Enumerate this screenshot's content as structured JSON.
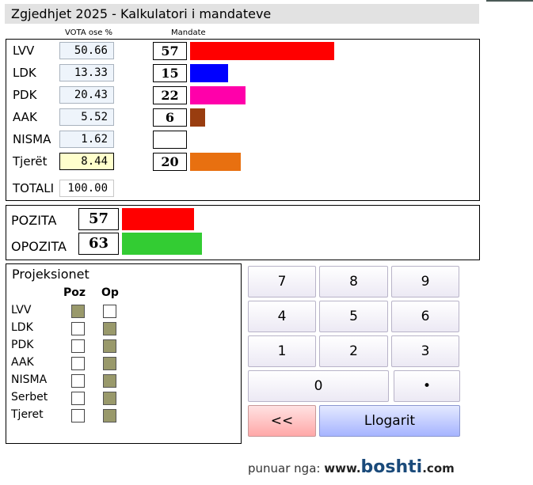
{
  "title": "Zgjedhjet 2025 - Kalkulatori i mandateve",
  "headers": {
    "votes": "VOTA ose %",
    "seats": "Mandate"
  },
  "parties": [
    {
      "label": "LVV",
      "vote": "50.66",
      "seats": "57",
      "color": "#ff0000"
    },
    {
      "label": "LDK",
      "vote": "13.33",
      "seats": "15",
      "color": "#0000ff"
    },
    {
      "label": "PDK",
      "vote": "20.43",
      "seats": "22",
      "color": "#ff00aa"
    },
    {
      "label": "AAK",
      "vote": "5.52",
      "seats": "6",
      "color": "#993d0f"
    },
    {
      "label": "NISMA",
      "vote": "1.62",
      "seats": "",
      "color": "#ffffff"
    },
    {
      "label": "Tjerët",
      "vote": "8.44",
      "seats": "20",
      "color": "#e87010"
    }
  ],
  "total": {
    "label": "TOTALI",
    "value": "100.00"
  },
  "coalition": {
    "pozita": {
      "label": "POZITA",
      "seats": "57",
      "color": "#ff0000"
    },
    "opozita": {
      "label": "OPOZITA",
      "seats": "63",
      "color": "#33cc33"
    }
  },
  "projections": {
    "title": "Projeksionet",
    "col_poz": "Poz",
    "col_op": "Op",
    "rows": [
      {
        "label": "LVV",
        "poz": true,
        "op": false
      },
      {
        "label": "LDK",
        "poz": false,
        "op": true
      },
      {
        "label": "PDK",
        "poz": false,
        "op": true
      },
      {
        "label": "AAK",
        "poz": false,
        "op": true
      },
      {
        "label": "NISMA",
        "poz": false,
        "op": true
      },
      {
        "label": "Serbet",
        "poz": false,
        "op": true
      },
      {
        "label": "Tjeret",
        "poz": false,
        "op": true
      }
    ]
  },
  "keypad": {
    "digits": [
      "7",
      "8",
      "9",
      "4",
      "5",
      "6",
      "1",
      "2",
      "3"
    ],
    "zero": "0",
    "dot": "•",
    "back": "<<",
    "calc": "Llogarit"
  },
  "credit": {
    "prefix": "punuar nga:",
    "site_pre": "www.",
    "brand": "boshti",
    "site_post": ".com"
  }
}
